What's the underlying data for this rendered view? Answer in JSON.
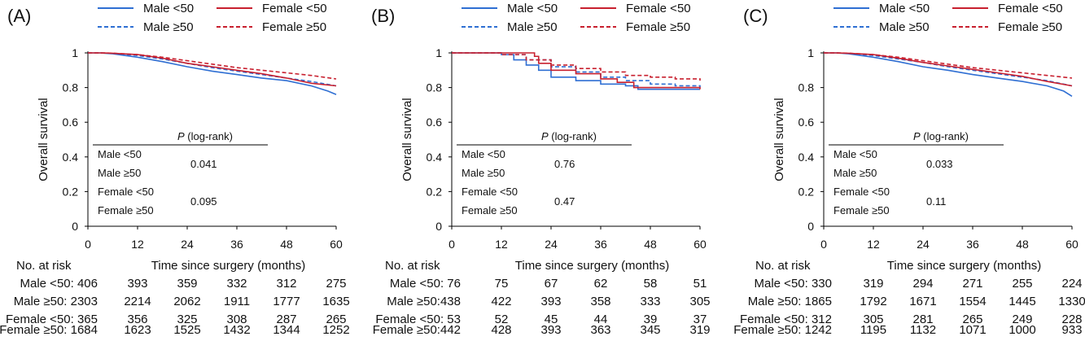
{
  "colors": {
    "male": "#2f6fd3",
    "female": "#c8202f",
    "axis": "#000000"
  },
  "panels": [
    {
      "label": "(A)",
      "legend": {
        "male_lt50": "Male <50",
        "female_lt50": "Female <50",
        "male_ge50": "Male ≥50",
        "female_ge50": "Female ≥50"
      },
      "pvalue_title_p": "P",
      "pvalue_title_rest": " (log-rank)",
      "pvalue_rows": [
        "Male <50",
        "Male ≥50",
        "Female <50",
        "Female ≥50"
      ],
      "pvalues": [
        "0.041",
        "0.095"
      ],
      "risk_title": "No. at risk",
      "risk_labels": [
        "Male <50: 406",
        "Male ≥50: 2303",
        "Female <50: 365",
        "Female ≥50: 1684"
      ],
      "risk_values": [
        [
          "393",
          "359",
          "332",
          "312",
          "275"
        ],
        [
          "2214",
          "2062",
          "1911",
          "1777",
          "1635"
        ],
        [
          "356",
          "325",
          "308",
          "287",
          "265"
        ],
        [
          "1623",
          "1525",
          "1432",
          "1344",
          "1252"
        ]
      ]
    },
    {
      "label": "(B)",
      "legend": {
        "male_lt50": "Male <50",
        "female_lt50": "Female <50",
        "male_ge50": "Male ≥50",
        "female_ge50": "Female ≥50"
      },
      "pvalue_title_p": "P",
      "pvalue_title_rest": " (log-rank)",
      "pvalue_rows": [
        "Male <50",
        "Male ≥50",
        "Female <50",
        "Female ≥50"
      ],
      "pvalues": [
        "0.76",
        "0.47"
      ],
      "risk_title": "No. at risk",
      "risk_labels": [
        "Male <50: 76",
        "Male ≥50:438",
        "Female <50: 53",
        "Female ≥50:442"
      ],
      "risk_values": [
        [
          "75",
          "67",
          "62",
          "58",
          "51"
        ],
        [
          "422",
          "393",
          "358",
          "333",
          "305"
        ],
        [
          "52",
          "45",
          "44",
          "39",
          "37"
        ],
        [
          "428",
          "393",
          "363",
          "345",
          "319"
        ]
      ]
    },
    {
      "label": "(C)",
      "legend": {
        "male_lt50": "Male <50",
        "female_lt50": "Female <50",
        "male_ge50": "Male ≥50",
        "female_ge50": "Female ≥50"
      },
      "pvalue_title_p": "P",
      "pvalue_title_rest": " (log-rank)",
      "pvalue_rows": [
        "Male <50",
        "Male ≥50",
        "Female <50",
        "Female ≥50"
      ],
      "pvalues": [
        "0.033",
        "0.11"
      ],
      "risk_title": "No. at risk",
      "risk_labels": [
        "Male <50: 330",
        "Male ≥50: 1865",
        "Female <50: 312",
        "Female ≥50: 1242"
      ],
      "risk_values": [
        [
          "319",
          "294",
          "271",
          "255",
          "224"
        ],
        [
          "1792",
          "1671",
          "1554",
          "1445",
          "1330"
        ],
        [
          "305",
          "281",
          "265",
          "249",
          "228"
        ],
        [
          "1195",
          "1132",
          "1071",
          "1000",
          "933"
        ]
      ]
    }
  ],
  "chart_data": [
    {
      "type": "line",
      "title": "(A)",
      "xlabel": "Time since surgery (months)",
      "ylabel": "Overall survival",
      "xlim": [
        0,
        60
      ],
      "ylim": [
        0,
        1
      ],
      "xticks": [
        "0",
        "12",
        "24",
        "36",
        "48",
        "60"
      ],
      "yticks": [
        "0",
        "0.2",
        "0.4",
        "0.6",
        "0.8",
        "1"
      ],
      "legend_position": "top",
      "series": [
        {
          "name": "Male <50",
          "x": [
            0,
            3,
            6,
            12,
            18,
            24,
            30,
            36,
            42,
            48,
            54,
            58,
            60
          ],
          "y": [
            1,
            1,
            0.995,
            0.975,
            0.95,
            0.92,
            0.895,
            0.875,
            0.855,
            0.84,
            0.81,
            0.78,
            0.76
          ]
        },
        {
          "name": "Male ≥50",
          "x": [
            0,
            3,
            6,
            12,
            18,
            24,
            30,
            36,
            42,
            48,
            54,
            60
          ],
          "y": [
            1,
            1,
            0.997,
            0.985,
            0.965,
            0.94,
            0.915,
            0.895,
            0.875,
            0.855,
            0.835,
            0.81
          ]
        },
        {
          "name": "Female <50",
          "x": [
            0,
            3,
            6,
            12,
            18,
            24,
            30,
            36,
            42,
            48,
            54,
            60
          ],
          "y": [
            1,
            1,
            0.998,
            0.99,
            0.97,
            0.94,
            0.92,
            0.9,
            0.88,
            0.855,
            0.825,
            0.81
          ]
        },
        {
          "name": "Female ≥50",
          "x": [
            0,
            3,
            6,
            12,
            18,
            24,
            30,
            36,
            42,
            48,
            54,
            60
          ],
          "y": [
            1,
            1,
            0.998,
            0.99,
            0.975,
            0.955,
            0.935,
            0.915,
            0.9,
            0.885,
            0.87,
            0.85
          ]
        }
      ]
    },
    {
      "type": "line",
      "title": "(B)",
      "xlabel": "Time since surgery (months)",
      "ylabel": "Overall survival",
      "xlim": [
        0,
        60
      ],
      "ylim": [
        0,
        1
      ],
      "xticks": [
        "0",
        "12",
        "24",
        "36",
        "48",
        "60"
      ],
      "yticks": [
        "0",
        "0.2",
        "0.4",
        "0.6",
        "0.8",
        "1"
      ],
      "legend_position": "top",
      "series": [
        {
          "name": "Male <50",
          "x": [
            0,
            9,
            12,
            15,
            18,
            21,
            24,
            30,
            36,
            42,
            45,
            60
          ],
          "y": [
            1,
            1,
            0.99,
            0.96,
            0.93,
            0.9,
            0.86,
            0.84,
            0.82,
            0.81,
            0.79,
            0.79
          ]
        },
        {
          "name": "Male ≥50",
          "x": [
            0,
            6,
            12,
            18,
            24,
            30,
            36,
            42,
            48,
            54,
            60
          ],
          "y": [
            1,
            1,
            0.99,
            0.96,
            0.92,
            0.89,
            0.86,
            0.84,
            0.82,
            0.81,
            0.8
          ]
        },
        {
          "name": "Female <50",
          "x": [
            0,
            12,
            18,
            20,
            21,
            24,
            30,
            36,
            40,
            44,
            60
          ],
          "y": [
            1,
            1,
            1,
            0.98,
            0.94,
            0.9,
            0.88,
            0.85,
            0.83,
            0.8,
            0.79
          ]
        },
        {
          "name": "Female ≥50",
          "x": [
            0,
            6,
            12,
            18,
            24,
            30,
            36,
            42,
            48,
            54,
            60
          ],
          "y": [
            1,
            1,
            0.99,
            0.96,
            0.93,
            0.91,
            0.89,
            0.87,
            0.86,
            0.85,
            0.84
          ]
        }
      ]
    },
    {
      "type": "line",
      "title": "(C)",
      "xlabel": "Time since surgery (months)",
      "ylabel": "Overall survival",
      "xlim": [
        0,
        60
      ],
      "ylim": [
        0,
        1
      ],
      "xticks": [
        "0",
        "12",
        "24",
        "36",
        "48",
        "60"
      ],
      "yticks": [
        "0",
        "0.2",
        "0.4",
        "0.6",
        "0.8",
        "1"
      ],
      "legend_position": "top",
      "series": [
        {
          "name": "Male <50",
          "x": [
            0,
            3,
            6,
            12,
            18,
            24,
            30,
            36,
            42,
            48,
            54,
            58,
            60
          ],
          "y": [
            1,
            1,
            0.995,
            0.975,
            0.95,
            0.92,
            0.9,
            0.875,
            0.855,
            0.835,
            0.81,
            0.78,
            0.75
          ]
        },
        {
          "name": "Male ≥50",
          "x": [
            0,
            3,
            6,
            12,
            18,
            24,
            30,
            36,
            42,
            48,
            54,
            60
          ],
          "y": [
            1,
            1,
            0.997,
            0.985,
            0.965,
            0.945,
            0.92,
            0.9,
            0.88,
            0.86,
            0.84,
            0.81
          ]
        },
        {
          "name": "Female <50",
          "x": [
            0,
            3,
            6,
            12,
            18,
            24,
            30,
            36,
            42,
            48,
            54,
            60
          ],
          "y": [
            1,
            1,
            0.998,
            0.99,
            0.97,
            0.945,
            0.925,
            0.905,
            0.885,
            0.865,
            0.835,
            0.81
          ]
        },
        {
          "name": "Female ≥50",
          "x": [
            0,
            3,
            6,
            12,
            18,
            24,
            30,
            36,
            42,
            48,
            54,
            60
          ],
          "y": [
            1,
            1,
            0.998,
            0.99,
            0.975,
            0.955,
            0.935,
            0.915,
            0.9,
            0.885,
            0.87,
            0.855
          ]
        }
      ]
    }
  ]
}
